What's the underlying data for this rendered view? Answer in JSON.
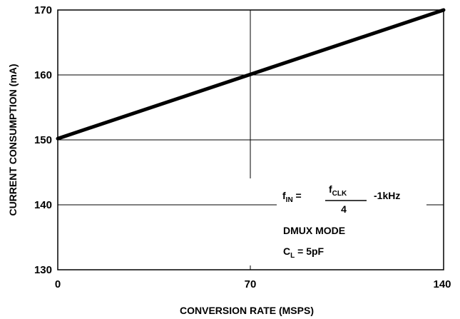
{
  "chart_data": {
    "type": "line",
    "title": "",
    "xlabel": "CONVERSION RATE (MSPS)",
    "ylabel": "CURRENT CONSUMPTION (mA)",
    "xlim": [
      0,
      140
    ],
    "ylim": [
      130,
      170
    ],
    "x_ticks": [
      0,
      70,
      140
    ],
    "y_ticks": [
      130,
      140,
      150,
      160,
      170
    ],
    "x_tick_labels": [
      "0",
      "70",
      "140"
    ],
    "y_tick_labels": [
      "130",
      "140",
      "150",
      "160",
      "170"
    ],
    "grid": true,
    "series": [
      {
        "x": [
          0,
          70,
          140
        ],
        "y": [
          150.2,
          160.1,
          170
        ]
      }
    ],
    "annotations": {
      "fin_main": "f",
      "fin_sub": "IN",
      "equals": " =",
      "fclk_main": "f",
      "fclk_sub": "CLK",
      "denominator": "4",
      "offset": "-1kHz",
      "mode": "DMUX MODE",
      "cl_main": "C",
      "cl_sub": "L",
      "cl_value": " = 5pF"
    }
  }
}
